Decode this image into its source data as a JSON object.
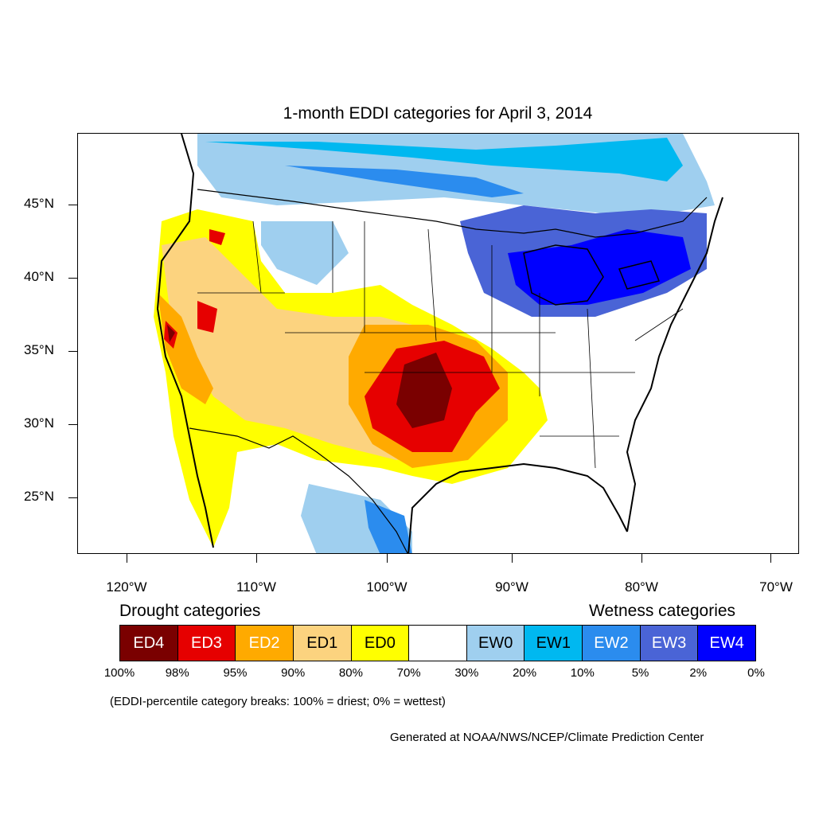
{
  "title": "1-month EDDI categories for April 3, 2014",
  "y_axis": {
    "ticks": [
      "45°N",
      "40°N",
      "35°N",
      "30°N",
      "25°N"
    ]
  },
  "x_axis": {
    "ticks": [
      "120°W",
      "110°W",
      "100°W",
      "90°W",
      "80°W",
      "70°W"
    ]
  },
  "legend": {
    "drought_heading": "Drought categories",
    "wetness_heading": "Wetness categories",
    "categories": [
      {
        "label": "ED4",
        "color": "#7a0000",
        "text_color": "#ffffff"
      },
      {
        "label": "ED3",
        "color": "#e60000",
        "text_color": "#ffffff"
      },
      {
        "label": "ED2",
        "color": "#ffaa00",
        "text_color": "#ffffff"
      },
      {
        "label": "ED1",
        "color": "#fcd37f",
        "text_color": "#000000"
      },
      {
        "label": "ED0",
        "color": "#ffff00",
        "text_color": "#000000"
      },
      {
        "label": "",
        "color": "#ffffff",
        "text_color": "#000000"
      },
      {
        "label": "EW0",
        "color": "#9fcfef",
        "text_color": "#000000"
      },
      {
        "label": "EW1",
        "color": "#00b8f0",
        "text_color": "#000000"
      },
      {
        "label": "EW2",
        "color": "#2b8cee",
        "text_color": "#ffffff"
      },
      {
        "label": "EW3",
        "color": "#4a64d6",
        "text_color": "#ffffff"
      },
      {
        "label": "EW4",
        "color": "#0000ff",
        "text_color": "#ffffff"
      }
    ],
    "breaks": [
      "100%",
      "98%",
      "95%",
      "90%",
      "80%",
      "70%",
      "30%",
      "20%",
      "10%",
      "5%",
      "2%",
      "0%"
    ]
  },
  "note": "(EDDI-percentile category breaks: 100% = driest; 0% = wettest)",
  "credit": "Generated at NOAA/NWS/NCEP/Climate Prediction Center"
}
